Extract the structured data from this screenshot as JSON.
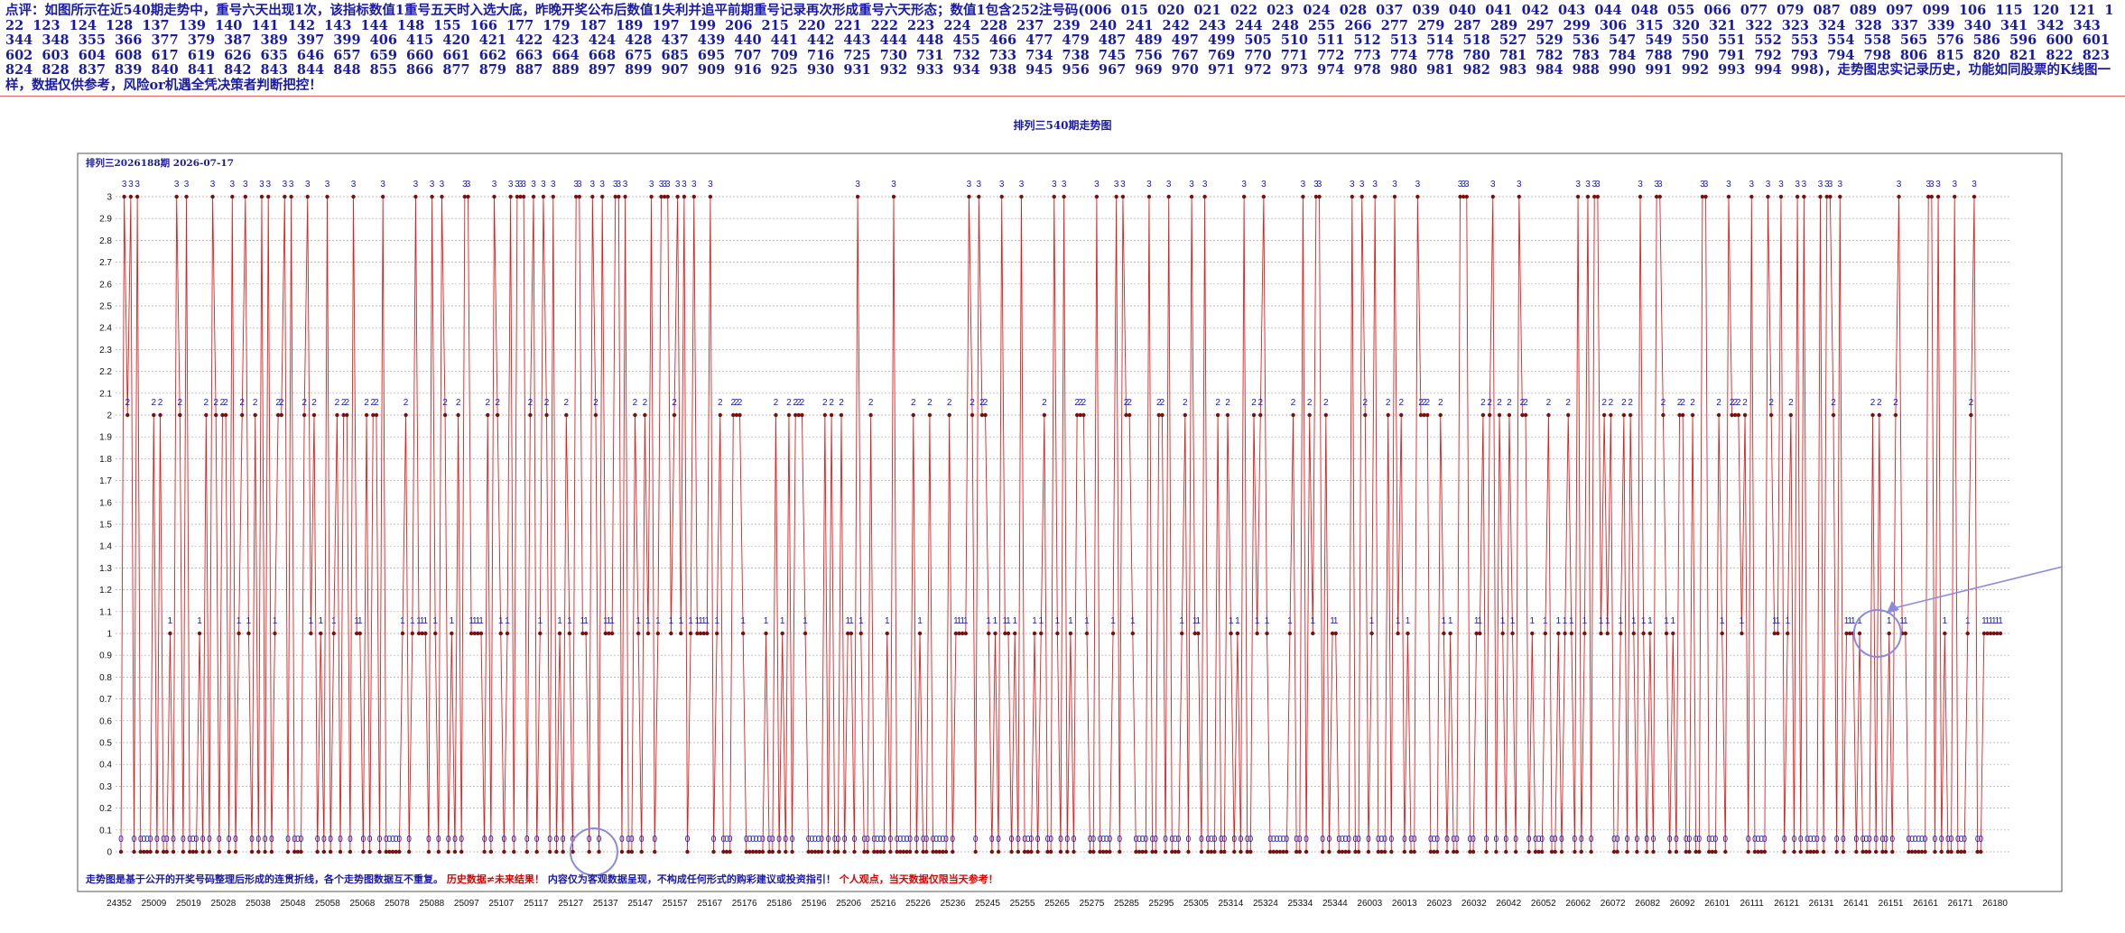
{
  "header": {
    "text": "点评：如图所示在近540期走势中，重号六天出现1次，该指标数值1重号五天时入选大底，昨晚开奖公布后数值1失利并追平前期重号记录再次形成重号六天形态；数值1包含252注号码(006  015  020  021  022  023  024  028  037  039  040  041  042  043  044  048  055  066  077  079  087  089  097  099  106  115  120  121  122  123  124  128  137  139  140  141  142  143  144  148  155  166  177  179  187  189  197  199  206  215  220  221  222  223  224  228  237  239  240  241  242  243  244  248  255  266  277  279  287  289  297  299  306  315  320  321  322  323  324  328  337  339  340  341  342  343  344  348  355  366  377  379  387  389  397  399  406  415  420  421  422  423  424  428  437  439  440  441  442  443  444  448  455  466  477  479  487  489  497  499  505  510  511  512  513  514  518  527  529  536  547  549  550  551  552  553  554  558  565  576  586  596  600  601  602  603  604  608  617  619  626  635  646  657  659  660  661  662  663  664  668  675  685  695  707  709  716  725  730  731  732  733  734  738  745  756  767  769  770  771  772  773  774  778  780  781  782  783  784  788  790  791  792  793  794  798  806  815  820  821  822  823  824  828  837  839  840  841  842  843  844  848  855  866  877  879  887  889  897  899  907  909  916  925  930  931  932  933  934  938  945  956  967  969  970  971  972  973  974  978  980  981  982  983  984  988  990  991  992  993  994  998)，走势图忠实记录历史，功能如同股票的K线图一样，数据仅供参考，风险or机遇全凭决策者判断把控！"
  },
  "chart_data": {
    "type": "line",
    "title": "排列三540期走势图",
    "subtitle": "排列三2026188期  2026-07-17",
    "ylim": [
      0,
      3
    ],
    "yticks": [
      "0",
      "0.1",
      "0.2",
      "0.3",
      "0.4",
      "0.5",
      "0.6",
      "0.7",
      "0.8",
      "0.9",
      "1",
      "1.1",
      "1.2",
      "1.3",
      "1.4",
      "1.5",
      "1.6",
      "1.7",
      "1.8",
      "1.9",
      "2",
      "2.1",
      "2.2",
      "2.3",
      "2.4",
      "2.5",
      "2.6",
      "2.7",
      "2.8",
      "2.9",
      "3"
    ],
    "xtick_labels": [
      "24352",
      "25009",
      "25019",
      "25028",
      "25038",
      "25048",
      "25058",
      "25068",
      "25078",
      "25088",
      "25097",
      "25107",
      "25117",
      "25127",
      "25137",
      "25147",
      "25157",
      "25167",
      "25176",
      "25186",
      "25196",
      "25206",
      "25216",
      "25226",
      "25236",
      "25245",
      "25255",
      "25265",
      "25275",
      "25285",
      "25295",
      "25305",
      "25314",
      "25324",
      "25334",
      "25344",
      "26003",
      "26013",
      "26023",
      "26032",
      "26042",
      "26052",
      "26062",
      "26072",
      "26082",
      "26092",
      "26101",
      "26111",
      "26121",
      "26131",
      "26141",
      "26151",
      "26161",
      "26171",
      "26180"
    ],
    "grid": true,
    "series": [
      {
        "color": "#e02020",
        "values": [
          0,
          3,
          2,
          3,
          0,
          3,
          0,
          0,
          0,
          0,
          2,
          0,
          2,
          0,
          0,
          1,
          0,
          3,
          2,
          0,
          3,
          0,
          0,
          0,
          1,
          0,
          2,
          0,
          3,
          2,
          0,
          2,
          2,
          0,
          3,
          0,
          1,
          2,
          3,
          1,
          0,
          2,
          0,
          3,
          0,
          3,
          0,
          1,
          2,
          2,
          3,
          0,
          3,
          0,
          0,
          0,
          2,
          3,
          1,
          2,
          0,
          1,
          0,
          3,
          0,
          1,
          2,
          0,
          2,
          2,
          0,
          3,
          1,
          1,
          0,
          2,
          0,
          2,
          2,
          0,
          3,
          0,
          0,
          0,
          0,
          0,
          1,
          2,
          0,
          1,
          3,
          1,
          1,
          1,
          0,
          3,
          1,
          0,
          3,
          2,
          0,
          1,
          0,
          2,
          0,
          3,
          3,
          1,
          1,
          1,
          1,
          0,
          2,
          0,
          3,
          2,
          1,
          0,
          1,
          3,
          0,
          3,
          3,
          3,
          0,
          2,
          3,
          0,
          1,
          3,
          2,
          0,
          3,
          0,
          1,
          0,
          2,
          1,
          0,
          3,
          3,
          1,
          1,
          0,
          3,
          2,
          0,
          3,
          1,
          1,
          1,
          3,
          3,
          0,
          3,
          0,
          0,
          2,
          1,
          0,
          2,
          1,
          3,
          0,
          1,
          3,
          3,
          3,
          1,
          2,
          3,
          1,
          3,
          0,
          1,
          3,
          1,
          1,
          1,
          1,
          3,
          0,
          1,
          2,
          0,
          0,
          0,
          2,
          2,
          2,
          1,
          0,
          0,
          0,
          0,
          0,
          0,
          1,
          0,
          0,
          2,
          0,
          1,
          0,
          2,
          0,
          2,
          2,
          2,
          1,
          0,
          0,
          0,
          0,
          0,
          2,
          0,
          2,
          0,
          0,
          2,
          0,
          1,
          1,
          0,
          3,
          1,
          0,
          0,
          2,
          0,
          0,
          0,
          0,
          1,
          0,
          3,
          0,
          0,
          0,
          0,
          0,
          2,
          0,
          1,
          0,
          0,
          2,
          0,
          0,
          0,
          0,
          0,
          2,
          0,
          1,
          1,
          1,
          1,
          3,
          2,
          0,
          3,
          2,
          2,
          1,
          0,
          1,
          0,
          3,
          1,
          1,
          0,
          1,
          0,
          3,
          0,
          0,
          0,
          1,
          0,
          1,
          2,
          0,
          0,
          3,
          1,
          0,
          3,
          0,
          1,
          0,
          2,
          2,
          2,
          1,
          0,
          0,
          3,
          0,
          0,
          0,
          0,
          1,
          3,
          0,
          3,
          2,
          2,
          1,
          0,
          0,
          0,
          0,
          3,
          0,
          0,
          2,
          2,
          0,
          3,
          0,
          0,
          0,
          1,
          2,
          0,
          3,
          1,
          1,
          0,
          3,
          0,
          0,
          0,
          2,
          0,
          0,
          2,
          1,
          0,
          1,
          0,
          3,
          0,
          0,
          2,
          1,
          2,
          3,
          1,
          0,
          0,
          0,
          0,
          0,
          0,
          1,
          2,
          0,
          0,
          3,
          0,
          2,
          1,
          3,
          3,
          0,
          2,
          0,
          1,
          1,
          0,
          0,
          0,
          0,
          3,
          0,
          0,
          3,
          2,
          0,
          1,
          3,
          0,
          0,
          0,
          2,
          0,
          3,
          1,
          2,
          0,
          1,
          0,
          0,
          3,
          2,
          2,
          2,
          0,
          0,
          0,
          2,
          1,
          0,
          1,
          0,
          0,
          3,
          3,
          3,
          0,
          0,
          1,
          1,
          2,
          0,
          2,
          3,
          0,
          2,
          1,
          0,
          2,
          1,
          0,
          3,
          2,
          2,
          0,
          1,
          0,
          0,
          0,
          1,
          2,
          0,
          0,
          1,
          0,
          1,
          2,
          1,
          0,
          3,
          0,
          1,
          3,
          0,
          3,
          3,
          1,
          2,
          1,
          2,
          0,
          0,
          1,
          2,
          0,
          2,
          1,
          0,
          3,
          1,
          0,
          1,
          0,
          3,
          3,
          2,
          1,
          0,
          1,
          0,
          2,
          2,
          0,
          0,
          2,
          0,
          0,
          3,
          3,
          0,
          0,
          0,
          2,
          1,
          0,
          3,
          2,
          2,
          2,
          1,
          2,
          0,
          3,
          0,
          0,
          0,
          0,
          3,
          2,
          1,
          1,
          3,
          0,
          1,
          2,
          0,
          3,
          0,
          3,
          0,
          0,
          0,
          0,
          3,
          0,
          3,
          3,
          2,
          0,
          3,
          0,
          1,
          1,
          1,
          0,
          1,
          0,
          0,
          0,
          2,
          0,
          2,
          0,
          0,
          1,
          0,
          2,
          3,
          1,
          1,
          0,
          0,
          0,
          0,
          0,
          0,
          3,
          3,
          0,
          3,
          0,
          1,
          0,
          0,
          3,
          0,
          0,
          0,
          1,
          2,
          3,
          0,
          0,
          1,
          1,
          1,
          1,
          1,
          1
        ]
      }
    ],
    "annotations": [
      {
        "type": "circle",
        "at_index": 145,
        "value": 0
      },
      {
        "type": "circle",
        "at_index": 537,
        "value": 1
      },
      {
        "type": "arrow",
        "points_to_index": 537,
        "value": 1
      }
    ]
  },
  "footer": {
    "text_blue_1": "走势图是基于公开的开奖号码整理后形成的连贯折线，各个走势图数据互不重复。",
    "text_red_1": "历史数据≠未来结果！",
    "text_blue_2": "内容仅为客观数据呈现，不构成任何形式的购彩建议或投资指引！",
    "text_red_2": "个人观点，当天数据仅限当天参考！"
  },
  "colors": {
    "header_text": "#1a1aa8",
    "line": "#e02020",
    "point": "#7a1010",
    "label": "#1a1aa8",
    "grid": "#a8a8a8",
    "circle": "#8a8ae0"
  }
}
